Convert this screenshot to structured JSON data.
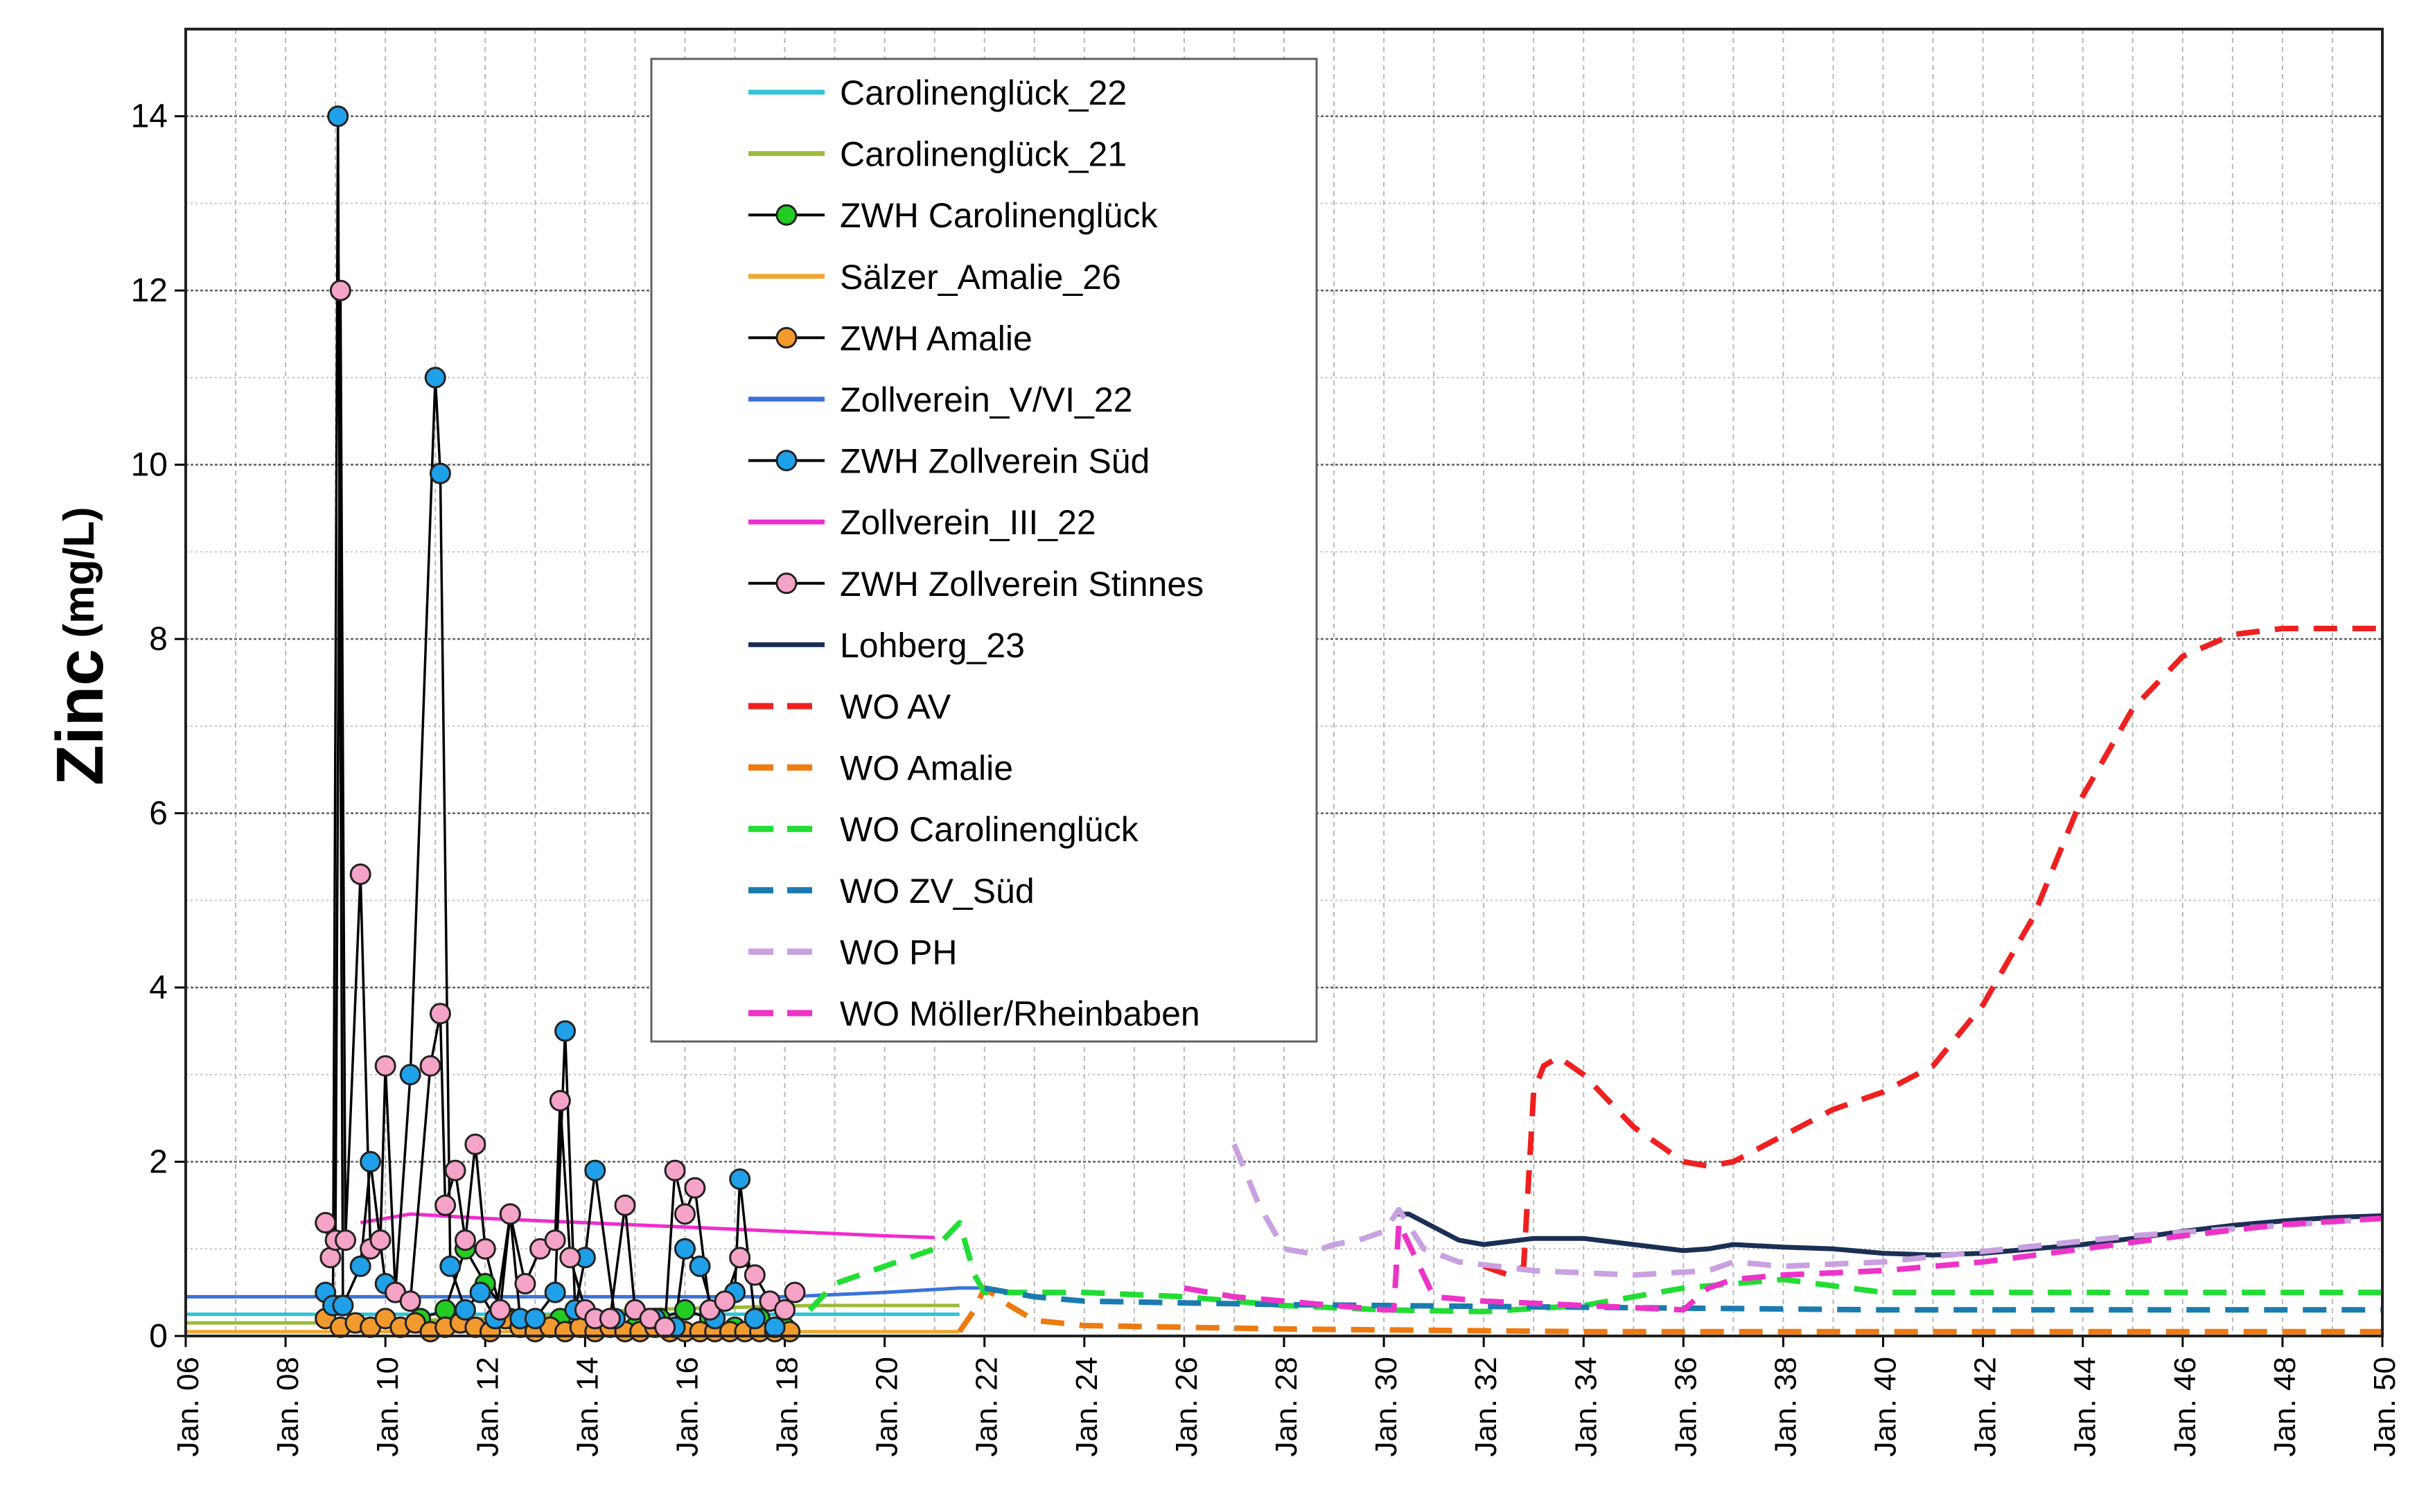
{
  "chart_data": {
    "type": "line",
    "title": "",
    "ylabel_main": "Zinc",
    "ylabel_unit": "(mg/L)",
    "xlabel": "",
    "ylim": [
      0,
      15
    ],
    "xlim": [
      2006,
      2050
    ],
    "grid": true,
    "legend_placement": "top-center",
    "y_ticks": [
      "0",
      "2",
      "4",
      "6",
      "8",
      "10",
      "12",
      "14"
    ],
    "x_ticks": [
      "Jan. 06",
      "Jan. 08",
      "Jan. 10",
      "Jan. 12",
      "Jan. 14",
      "Jan. 16",
      "Jan. 18",
      "Jan. 20",
      "Jan. 22",
      "Jan. 24",
      "Jan. 26",
      "Jan. 28",
      "Jan. 30",
      "Jan. 32",
      "Jan. 34",
      "Jan. 36",
      "Jan. 38",
      "Jan. 40",
      "Jan. 42",
      "Jan. 44",
      "Jan. 46",
      "Jan. 48",
      "Jan. 50"
    ],
    "series": [
      {
        "name": "Carolinenglück_22",
        "style": "solid",
        "color": "#2ec4d6",
        "x": [
          2006.0,
          2009.0,
          2012.0,
          2015.0,
          2018.5,
          2021.5
        ],
        "y": [
          0.25,
          0.25,
          0.25,
          0.25,
          0.25,
          0.25
        ]
      },
      {
        "name": "Carolinenglück_21",
        "style": "solid",
        "color": "#9bbb3a",
        "x": [
          2006.0,
          2009.0,
          2012.0,
          2015.0,
          2018.5,
          2021.5
        ],
        "y": [
          0.15,
          0.15,
          0.2,
          0.3,
          0.35,
          0.35
        ]
      },
      {
        "name": "ZWH Carolinenglück",
        "style": "marker",
        "color": "#000000",
        "marker": "#22cc22",
        "x": [
          2010.3,
          2010.7,
          2011.2,
          2011.6,
          2012.0,
          2012.5,
          2013.0,
          2013.5,
          2014.0,
          2014.5,
          2015.0,
          2015.5,
          2016.0,
          2016.5,
          2017.0,
          2017.5,
          2018.0
        ],
        "y": [
          0.1,
          0.2,
          0.3,
          1.0,
          0.6,
          0.2,
          0.1,
          0.2,
          0.1,
          0.2,
          0.1,
          0.2,
          0.3,
          0.2,
          0.1,
          0.2,
          0.1
        ]
      },
      {
        "name": "Sälzer_Amalie_26",
        "style": "solid",
        "color": "#f0a830",
        "x": [
          2006.0,
          2009.0,
          2012.0,
          2015.0,
          2018.0,
          2021.5
        ],
        "y": [
          0.05,
          0.05,
          0.05,
          0.05,
          0.05,
          0.05
        ]
      },
      {
        "name": "ZWH Amalie",
        "style": "marker",
        "color": "#000000",
        "marker": "#f29a2e",
        "x": [
          2008.8,
          2009.1,
          2009.4,
          2009.7,
          2010.0,
          2010.3,
          2010.6,
          2010.9,
          2011.2,
          2011.5,
          2011.8,
          2012.1,
          2012.4,
          2012.7,
          2013.0,
          2013.3,
          2013.6,
          2013.9,
          2014.2,
          2014.5,
          2014.8,
          2015.1,
          2015.4,
          2015.7,
          2016.0,
          2016.3,
          2016.6,
          2016.9,
          2017.2,
          2017.5,
          2017.8,
          2018.1
        ],
        "y": [
          0.2,
          0.1,
          0.15,
          0.1,
          0.2,
          0.1,
          0.15,
          0.05,
          0.1,
          0.15,
          0.1,
          0.05,
          0.2,
          0.1,
          0.05,
          0.1,
          0.05,
          0.1,
          0.05,
          0.1,
          0.05,
          0.05,
          0.1,
          0.05,
          0.05,
          0.05,
          0.05,
          0.05,
          0.05,
          0.05,
          0.05,
          0.05
        ]
      },
      {
        "name": "Zollverein_V/VI_22",
        "style": "solid",
        "color": "#3a72d8",
        "x": [
          2006.0,
          2012.0,
          2018.0,
          2020.0,
          2021.5,
          2021.8,
          2022.0
        ],
        "y": [
          0.45,
          0.45,
          0.45,
          0.5,
          0.55,
          0.55,
          0.55
        ]
      },
      {
        "name": "ZWH Zollverein Süd",
        "style": "marker",
        "color": "#000000",
        "marker": "#1fa0e8",
        "x": [
          2008.8,
          2008.95,
          2009.05,
          2009.15,
          2009.5,
          2009.7,
          2010.0,
          2010.2,
          2010.5,
          2011.0,
          2011.1,
          2011.3,
          2011.6,
          2011.9,
          2012.2,
          2012.5,
          2012.7,
          2013.0,
          2013.4,
          2013.6,
          2013.8,
          2014.0,
          2014.2,
          2014.6,
          2015.0,
          2015.4,
          2015.8,
          2016.0,
          2016.3,
          2016.6,
          2017.0,
          2017.1,
          2017.4,
          2017.8
        ],
        "y": [
          0.5,
          0.35,
          14.0,
          0.35,
          0.8,
          2.0,
          0.6,
          0.5,
          3.0,
          11.0,
          9.9,
          0.8,
          0.3,
          0.5,
          0.2,
          1.4,
          0.2,
          0.2,
          0.5,
          3.5,
          0.3,
          0.9,
          1.9,
          0.2,
          0.3,
          0.2,
          0.1,
          1.0,
          0.8,
          0.2,
          0.5,
          1.8,
          0.2,
          0.1
        ]
      },
      {
        "name": "Zollverein_III_22",
        "style": "solid",
        "color": "#f12ccf",
        "x": [
          2009.5,
          2010.0,
          2010.5,
          2012.0,
          2014.0,
          2016.0,
          2018.0,
          2020.0,
          2021.0
        ],
        "y": [
          1.3,
          1.35,
          1.4,
          1.35,
          1.3,
          1.25,
          1.2,
          1.15,
          1.13
        ]
      },
      {
        "name": "ZWH Zollverein Stinnes",
        "style": "marker",
        "color": "#000000",
        "marker": "#f6a3c8",
        "x": [
          2008.8,
          2008.9,
          2009.0,
          2009.1,
          2009.2,
          2009.5,
          2009.7,
          2009.9,
          2010.0,
          2010.2,
          2010.5,
          2010.9,
          2011.1,
          2011.2,
          2011.4,
          2011.6,
          2011.8,
          2012.0,
          2012.3,
          2012.5,
          2012.8,
          2013.1,
          2013.4,
          2013.5,
          2013.7,
          2014.0,
          2014.2,
          2014.5,
          2014.8,
          2015.0,
          2015.3,
          2015.6,
          2015.8,
          2016.0,
          2016.2,
          2016.5,
          2016.8,
          2017.1,
          2017.4,
          2017.7,
          2018.0,
          2018.2
        ],
        "y": [
          1.3,
          0.9,
          1.1,
          12.0,
          1.1,
          5.3,
          1.0,
          1.1,
          3.1,
          0.5,
          0.4,
          3.1,
          3.7,
          1.5,
          1.9,
          1.1,
          2.2,
          1.0,
          0.3,
          1.4,
          0.6,
          1.0,
          1.1,
          2.7,
          0.9,
          0.3,
          0.2,
          0.2,
          1.5,
          0.3,
          0.2,
          0.1,
          1.9,
          1.4,
          1.7,
          0.3,
          0.4,
          0.9,
          0.7,
          0.4,
          0.3,
          0.5
        ]
      },
      {
        "name": "Lohberg_23",
        "style": "solid",
        "color": "#1b2f55",
        "x": [
          2030.2,
          2030.5,
          2031.0,
          2031.5,
          2032.0,
          2033.0,
          2034.0,
          2035.0,
          2036.0,
          2036.5,
          2037.0,
          2038.0,
          2039.0,
          2040.0,
          2041.0,
          2042.0,
          2043.0,
          2044.0,
          2045.0,
          2046.0,
          2047.0,
          2048.0,
          2049.0,
          2050.0
        ],
        "y": [
          1.4,
          1.4,
          1.25,
          1.1,
          1.05,
          1.12,
          1.12,
          1.05,
          0.98,
          1.0,
          1.05,
          1.02,
          1.0,
          0.95,
          0.93,
          0.95,
          1.0,
          1.05,
          1.12,
          1.2,
          1.27,
          1.32,
          1.36,
          1.38
        ]
      },
      {
        "name": "WO  AV",
        "style": "dashed",
        "color": "#ef2020",
        "x": [
          2032.0,
          2032.5,
          2032.8,
          2033.0,
          2033.2,
          2033.5,
          2034.0,
          2035.0,
          2036.0,
          2036.5,
          2037.0,
          2038.0,
          2039.0,
          2040.0,
          2041.0,
          2042.0,
          2043.0,
          2044.0,
          2045.0,
          2046.0,
          2047.0,
          2048.0,
          2049.0,
          2050.0
        ],
        "y": [
          0.8,
          0.7,
          0.8,
          2.8,
          3.1,
          3.2,
          3.0,
          2.4,
          2.0,
          1.95,
          2.0,
          2.3,
          2.6,
          2.8,
          3.1,
          3.8,
          4.8,
          6.2,
          7.2,
          7.8,
          8.05,
          8.12,
          8.12,
          8.12
        ]
      },
      {
        "name": "WO  Amalie",
        "style": "dashed",
        "color": "#ee7a10",
        "x": [
          2021.5,
          2021.8,
          2022.0,
          2022.5,
          2023.0,
          2024.0,
          2026.0,
          2028.0,
          2030.0,
          2032.0,
          2034.0,
          2036.0,
          2040.0,
          2045.0,
          2050.0
        ],
        "y": [
          0.05,
          0.3,
          0.55,
          0.35,
          0.18,
          0.12,
          0.1,
          0.08,
          0.07,
          0.06,
          0.05,
          0.05,
          0.05,
          0.05,
          0.05
        ]
      },
      {
        "name": "WO  Carolinenglück",
        "style": "dashed",
        "color": "#22dd33",
        "x": [
          2018.5,
          2019.0,
          2020.0,
          2021.0,
          2021.5,
          2021.8,
          2022.0,
          2023.0,
          2024.0,
          2026.0,
          2028.0,
          2030.0,
          2032.0,
          2034.0,
          2036.0,
          2038.0,
          2040.0,
          2045.0,
          2050.0
        ],
        "y": [
          0.3,
          0.6,
          0.8,
          1.0,
          1.3,
          0.7,
          0.5,
          0.5,
          0.5,
          0.45,
          0.35,
          0.3,
          0.28,
          0.35,
          0.55,
          0.65,
          0.5,
          0.5,
          0.5
        ]
      },
      {
        "name": "WO  ZV_Süd",
        "style": "dashed",
        "color": "#1a7bb0",
        "x": [
          2022.0,
          2023.0,
          2024.0,
          2026.0,
          2028.0,
          2030.0,
          2032.0,
          2034.0,
          2036.0,
          2038.0,
          2040.0,
          2045.0,
          2050.0
        ],
        "y": [
          0.55,
          0.45,
          0.4,
          0.38,
          0.36,
          0.35,
          0.34,
          0.33,
          0.32,
          0.31,
          0.3,
          0.3,
          0.3
        ]
      },
      {
        "name": "WO  PH",
        "style": "dashed",
        "color": "#c9a0e0",
        "x": [
          2027.0,
          2027.5,
          2028.0,
          2028.5,
          2029.0,
          2029.5,
          2030.0,
          2030.3,
          2030.8,
          2031.5,
          2033.0,
          2035.0,
          2036.5,
          2037.0,
          2038.0,
          2040.0,
          2045.0,
          2050.0
        ],
        "y": [
          2.2,
          1.5,
          1.0,
          0.95,
          1.05,
          1.1,
          1.2,
          1.45,
          1.0,
          0.85,
          0.75,
          0.7,
          0.75,
          0.85,
          0.8,
          0.85,
          1.15,
          1.35
        ]
      },
      {
        "name": "WO  Möller/Rheinbaben",
        "style": "dashed",
        "color": "#ee33c8",
        "x": [
          2026.0,
          2027.0,
          2028.0,
          2029.0,
          2030.0,
          2030.2,
          2030.3,
          2031.0,
          2032.0,
          2034.0,
          2036.0,
          2036.5,
          2037.0,
          2038.0,
          2040.0,
          2042.0,
          2044.0,
          2046.0,
          2048.0,
          2050.0
        ],
        "y": [
          0.55,
          0.45,
          0.4,
          0.35,
          0.3,
          0.3,
          1.3,
          0.45,
          0.4,
          0.35,
          0.3,
          0.55,
          0.65,
          0.7,
          0.75,
          0.85,
          1.0,
          1.15,
          1.28,
          1.35
        ]
      }
    ]
  }
}
